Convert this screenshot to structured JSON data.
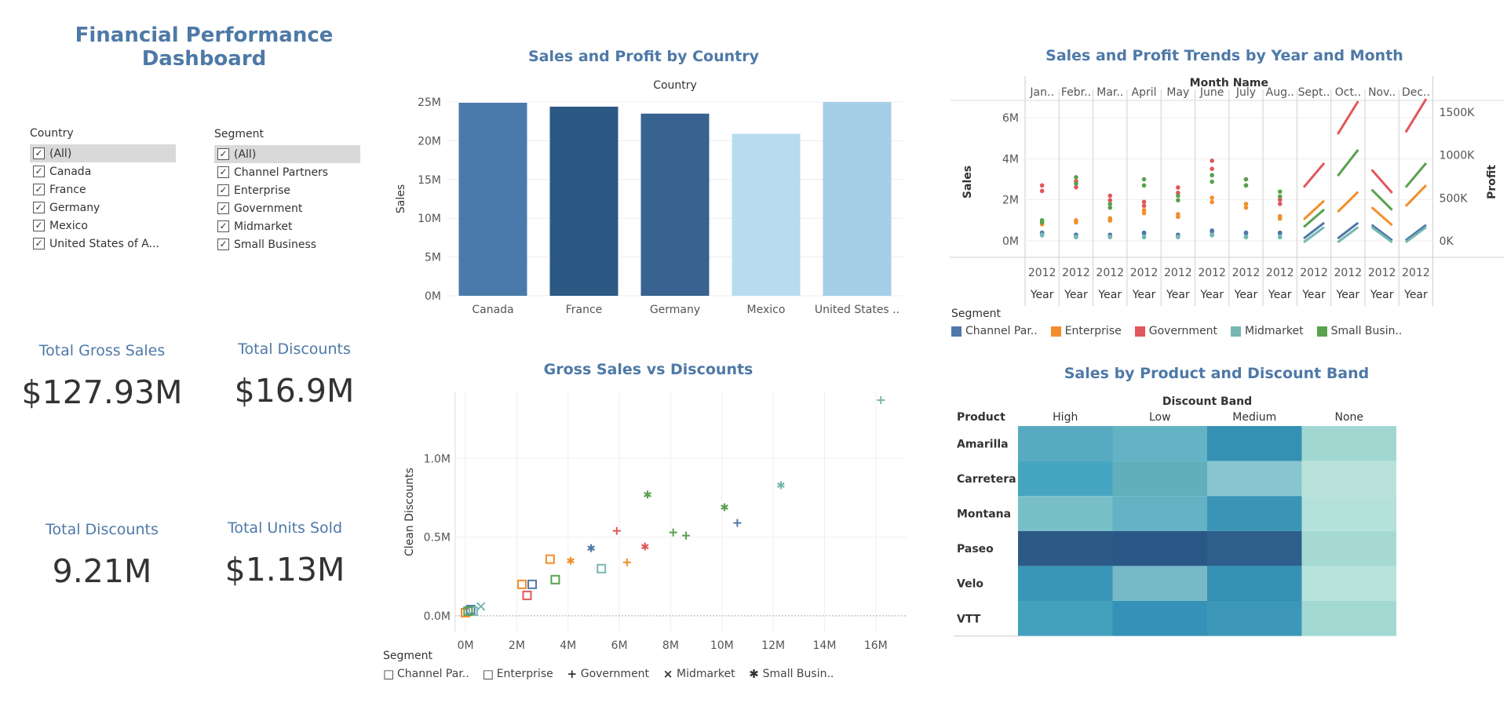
{
  "dashboard": {
    "title_line1": "Financial Performance",
    "title_line2": "Dashboard"
  },
  "filters": {
    "country": {
      "title": "Country",
      "items": [
        "(All)",
        "Canada",
        "France",
        "Germany",
        "Mexico",
        "United States of A..."
      ]
    },
    "segment": {
      "title": "Segment",
      "items": [
        "(All)",
        "Channel Partners",
        "Enterprise",
        "Government",
        "Midmarket",
        "Small Business"
      ]
    },
    "check_glyph": "✓"
  },
  "kpis": [
    {
      "label": "Total Gross Sales",
      "value": "$127.93M"
    },
    {
      "label": "Total Discounts",
      "value": "$16.9M"
    },
    {
      "label": "Total Discounts",
      "value": "9.21M"
    },
    {
      "label": "Total Units Sold",
      "value": "$1.13M"
    }
  ],
  "colors": {
    "title": "#4e79a7",
    "segments": {
      "Channel Par..": "#4e79a7",
      "Enterprise": "#f28e2b",
      "Government": "#e15759",
      "Midmarket": "#76b7b2",
      "Small Busin..": "#59a14f"
    }
  },
  "segment_legend": {
    "title": "Segment",
    "items": [
      {
        "name": "Channel Par..",
        "color": "#4e79a7",
        "shape": "□"
      },
      {
        "name": "Enterprise",
        "color": "#f28e2b",
        "shape": "□"
      },
      {
        "name": "Government",
        "color": "#e15759",
        "shape": "+"
      },
      {
        "name": "Midmarket",
        "color": "#76b7b2",
        "shape": "×"
      },
      {
        "name": "Small Busin..",
        "color": "#59a14f",
        "shape": "✱"
      }
    ]
  },
  "chart_data": [
    {
      "id": "bar",
      "type": "bar",
      "title": "Sales and Profit by Country",
      "header": "Country",
      "ylabel": "Sales",
      "categories": [
        "Canada",
        "France",
        "Germany",
        "Mexico",
        "United States .."
      ],
      "values": [
        24.9,
        24.4,
        23.5,
        20.9,
        25.0
      ],
      "colors": [
        "#4a7aab",
        "#2c5884",
        "#38628f",
        "#b8dcef",
        "#a5cee7"
      ],
      "ylim": [
        0,
        25
      ],
      "yticks": [
        "0M",
        "5M",
        "10M",
        "15M",
        "20M",
        "25M"
      ],
      "grid": true
    },
    {
      "id": "trend",
      "type": "line",
      "title": "Sales and Profit Trends by Year and Month",
      "header": "Month Name",
      "ylabel": "Sales",
      "y2label": "Profit",
      "months": [
        "Jan..",
        "Febr..",
        "Mar..",
        "April",
        "May",
        "June",
        "July",
        "Aug..",
        "Sept..",
        "Oct..",
        "Nov..",
        "Dec.."
      ],
      "year": "2012",
      "year_label": "Year",
      "yticks": [
        "0M",
        "2M",
        "4M",
        "6M"
      ],
      "y2ticks": [
        "0K",
        "500K",
        "1000K",
        "1500K"
      ],
      "ylim": [
        0,
        6
      ],
      "series": [
        {
          "name": "Channel Par..",
          "color": "#4e79a7",
          "values": [
            0.4,
            0.3,
            0.3,
            0.4,
            0.3,
            0.5,
            0.4,
            0.4,
            0.5,
            0.5,
            0.4,
            0.4
          ]
        },
        {
          "name": "Enterprise",
          "color": "#f28e2b",
          "values": [
            0.9,
            1.0,
            1.1,
            1.5,
            1.3,
            2.1,
            1.8,
            1.2,
            1.5,
            1.9,
            1.2,
            2.2
          ]
        },
        {
          "name": "Government",
          "color": "#e15759",
          "values": [
            2.7,
            2.9,
            2.2,
            1.9,
            2.6,
            3.9,
            3.0,
            2.0,
            3.2,
            6.0,
            2.9,
            6.1
          ]
        },
        {
          "name": "Midmarket",
          "color": "#76b7b2",
          "values": [
            0.3,
            0.2,
            0.2,
            0.2,
            0.2,
            0.3,
            0.2,
            0.2,
            0.3,
            0.3,
            0.3,
            0.3
          ]
        },
        {
          "name": "Small Busin..",
          "color": "#59a14f",
          "values": [
            1.0,
            3.1,
            1.8,
            3.0,
            2.2,
            3.2,
            3.0,
            2.4,
            1.1,
            3.8,
            2.0,
            3.2
          ]
        }
      ]
    },
    {
      "id": "scatter",
      "type": "scatter",
      "title": "Gross Sales vs Discounts",
      "xlabel": "Gross Sales",
      "ylabel": "Clean Discounts",
      "xticks": [
        "0M",
        "2M",
        "4M",
        "6M",
        "8M",
        "10M",
        "12M",
        "14M",
        "16M"
      ],
      "yticks": [
        "0.0M",
        "0.5M",
        "1.0M"
      ],
      "xlim": [
        -0.4,
        17.2
      ],
      "ylim": [
        -0.1,
        1.42
      ],
      "points": [
        {
          "x": 0.0,
          "y": 0.02,
          "seg": "Enterprise",
          "shape": "square"
        },
        {
          "x": 0.2,
          "y": 0.04,
          "seg": "Channel Par..",
          "shape": "square"
        },
        {
          "x": 0.3,
          "y": 0.03,
          "seg": "Midmarket",
          "shape": "square"
        },
        {
          "x": 0.1,
          "y": 0.03,
          "seg": "Small Busin..",
          "shape": "square"
        },
        {
          "x": 0.6,
          "y": 0.06,
          "seg": "Midmarket",
          "shape": "x"
        },
        {
          "x": 2.2,
          "y": 0.2,
          "seg": "Enterprise",
          "shape": "square"
        },
        {
          "x": 2.4,
          "y": 0.13,
          "seg": "Government",
          "shape": "square"
        },
        {
          "x": 2.6,
          "y": 0.2,
          "seg": "Channel Par..",
          "shape": "square"
        },
        {
          "x": 3.3,
          "y": 0.36,
          "seg": "Enterprise",
          "shape": "square"
        },
        {
          "x": 3.5,
          "y": 0.23,
          "seg": "Small Busin..",
          "shape": "square"
        },
        {
          "x": 4.1,
          "y": 0.35,
          "seg": "Enterprise",
          "shape": "star"
        },
        {
          "x": 4.9,
          "y": 0.43,
          "seg": "Channel Par..",
          "shape": "star"
        },
        {
          "x": 5.3,
          "y": 0.3,
          "seg": "Midmarket",
          "shape": "square"
        },
        {
          "x": 5.9,
          "y": 0.54,
          "seg": "Government",
          "shape": "plus"
        },
        {
          "x": 6.3,
          "y": 0.34,
          "seg": "Enterprise",
          "shape": "plus"
        },
        {
          "x": 7.0,
          "y": 0.44,
          "seg": "Government",
          "shape": "star"
        },
        {
          "x": 7.1,
          "y": 0.77,
          "seg": "Small Busin..",
          "shape": "star"
        },
        {
          "x": 8.1,
          "y": 0.53,
          "seg": "Small Busin..",
          "shape": "plus"
        },
        {
          "x": 8.6,
          "y": 0.51,
          "seg": "Small Busin..",
          "shape": "plus"
        },
        {
          "x": 10.1,
          "y": 0.69,
          "seg": "Small Busin..",
          "shape": "star"
        },
        {
          "x": 10.6,
          "y": 0.59,
          "seg": "Channel Par..",
          "shape": "plus"
        },
        {
          "x": 12.3,
          "y": 0.83,
          "seg": "Midmarket",
          "shape": "star"
        },
        {
          "x": 16.2,
          "y": 1.37,
          "seg": "Midmarket",
          "shape": "plus"
        }
      ]
    },
    {
      "id": "heatmap",
      "type": "heatmap",
      "title": "Sales by Product and Discount Band",
      "col_header": "Discount Band",
      "row_header": "Product",
      "columns": [
        "High",
        "Low",
        "Medium",
        "None"
      ],
      "rows": [
        "Amarilla",
        "Carretera",
        "Montana",
        "Paseo",
        "Velo",
        "VTT"
      ],
      "cells": [
        [
          "#57aac0",
          "#63b3c4",
          "#3591b3",
          "#a1d7d1"
        ],
        [
          "#46a5c1",
          "#61afbd",
          "#88c6cf",
          "#b9e3da"
        ],
        [
          "#79bfc8",
          "#63b3c4",
          "#3a94b6",
          "#b4e1d9"
        ],
        [
          "#2c5a87",
          "#2a5886",
          "#2e5f8b",
          "#a5d9d2"
        ],
        [
          "#3996b6",
          "#76bac8",
          "#3591b3",
          "#b7e3da"
        ],
        [
          "#44a1bd",
          "#3591b8",
          "#3d98b8",
          "#a3d9d3"
        ]
      ]
    }
  ]
}
